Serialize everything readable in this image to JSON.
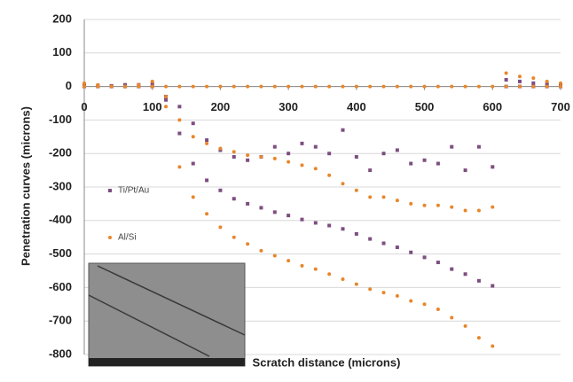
{
  "chart_data": {
    "type": "scatter",
    "x_label": "Scratch distance (microns)",
    "y_label": "Penetration curves (microns)",
    "xlim": [
      0,
      700
    ],
    "xticks": [
      0,
      100,
      200,
      300,
      400,
      500,
      600,
      700
    ],
    "ylim": [
      -800,
      200
    ],
    "yticks": [
      -800,
      -700,
      -600,
      -500,
      -400,
      -300,
      -200,
      -100,
      0,
      100,
      200
    ],
    "grid": true,
    "series": [
      {
        "name": "Ti/Pt/Au",
        "color": "#7d4e80",
        "x": [
          0,
          20,
          40,
          60,
          80,
          100,
          120,
          140,
          160,
          180,
          200,
          220,
          240,
          260,
          280,
          300,
          320,
          340,
          360,
          380,
          400,
          420,
          440,
          460,
          480,
          500,
          520,
          540,
          560,
          580,
          600,
          620,
          640,
          660,
          680,
          700,
          0,
          20,
          40,
          60,
          80,
          100,
          120,
          140,
          160,
          180,
          200,
          220,
          240,
          260,
          280,
          300,
          320,
          340,
          360,
          380,
          400,
          420,
          440,
          460,
          480,
          500,
          520,
          540,
          560,
          580,
          600,
          620,
          640,
          660,
          680,
          700
        ],
        "values": [
          5,
          3,
          2,
          5,
          5,
          8,
          -40,
          -140,
          -230,
          -280,
          -310,
          -335,
          -350,
          -362,
          -375,
          -385,
          -397,
          -407,
          -415,
          -425,
          -440,
          -455,
          -468,
          -480,
          -495,
          -510,
          -525,
          -545,
          -560,
          -580,
          -595,
          20,
          15,
          10,
          8,
          5,
          0,
          0,
          0,
          0,
          0,
          0,
          -30,
          -60,
          -110,
          -160,
          -190,
          -210,
          -220,
          -210,
          -180,
          -200,
          -170,
          -180,
          -200,
          -130,
          -210,
          -250,
          -200,
          -190,
          -230,
          -220,
          -230,
          -180,
          -250,
          -180,
          -240,
          0,
          0,
          0,
          0,
          0
        ]
      },
      {
        "name": "Al/Si",
        "color": "#e8862a",
        "x": [
          0,
          20,
          40,
          60,
          80,
          100,
          120,
          140,
          160,
          180,
          200,
          220,
          240,
          260,
          280,
          300,
          320,
          340,
          360,
          380,
          400,
          420,
          440,
          460,
          480,
          500,
          520,
          540,
          560,
          580,
          600,
          620,
          640,
          660,
          680,
          700,
          0,
          20,
          40,
          60,
          80,
          100,
          120,
          140,
          160,
          180,
          200,
          220,
          240,
          260,
          280,
          300,
          320,
          340,
          360,
          380,
          400,
          420,
          440,
          460,
          480,
          500,
          520,
          540,
          560,
          580,
          600,
          620,
          640,
          660,
          680,
          700,
          0,
          20,
          40,
          60,
          80,
          100,
          120,
          140,
          160,
          180,
          200,
          220,
          240,
          260,
          280,
          300,
          320,
          340,
          360,
          380,
          400,
          420,
          440,
          460,
          480,
          500,
          520,
          540,
          560,
          580,
          600
        ],
        "values": [
          10,
          5,
          0,
          0,
          5,
          15,
          -60,
          -240,
          -330,
          -380,
          -420,
          -450,
          -470,
          -490,
          -505,
          -520,
          -535,
          -545,
          -560,
          -575,
          -590,
          -605,
          -615,
          -625,
          -640,
          -650,
          -665,
          -690,
          -715,
          -750,
          -775,
          40,
          30,
          25,
          15,
          10,
          0,
          0,
          0,
          0,
          0,
          0,
          -30,
          -100,
          -150,
          -170,
          -185,
          -195,
          -205,
          -210,
          -215,
          -225,
          -235,
          -245,
          -265,
          -290,
          -310,
          -330,
          -330,
          -340,
          -350,
          -355,
          -355,
          -360,
          -370,
          -370,
          -360,
          0,
          0,
          0,
          0,
          0,
          0,
          0,
          0,
          0,
          0,
          0,
          0,
          0,
          0,
          0,
          0,
          0,
          0,
          0,
          0,
          0,
          0,
          0,
          0,
          0,
          0,
          0,
          0,
          0,
          0,
          0,
          0,
          0,
          0,
          0,
          0
        ]
      }
    ]
  }
}
